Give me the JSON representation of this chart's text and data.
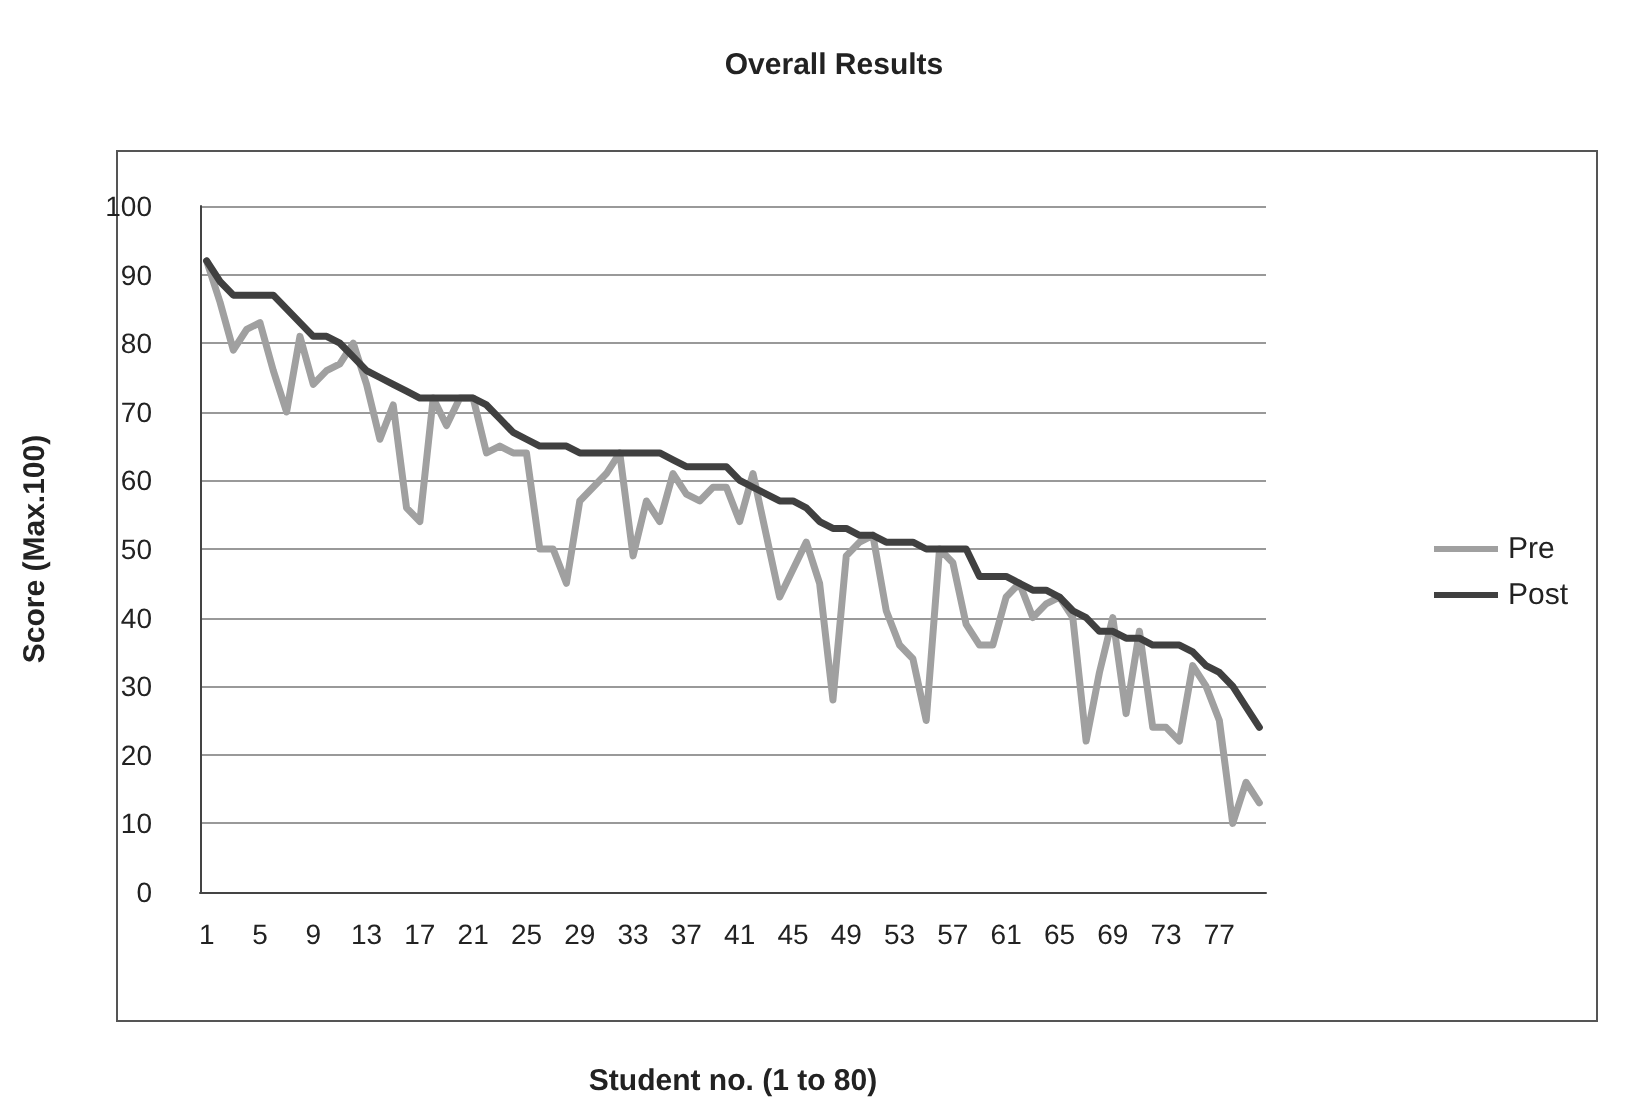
{
  "chart_data": {
    "type": "line",
    "title": "Overall Results",
    "xlabel": "Student no. (1 to 80)",
    "ylabel": "Score (Max.100)",
    "categories": [
      "1",
      null,
      null,
      null,
      "5",
      null,
      null,
      null,
      "9",
      null,
      null,
      null,
      "13",
      null,
      null,
      null,
      "17",
      null,
      null,
      null,
      "21",
      null,
      null,
      null,
      "25",
      null,
      null,
      null,
      "29",
      null,
      null,
      null,
      "33",
      null,
      null,
      null,
      "37",
      null,
      null,
      null,
      "41",
      null,
      null,
      null,
      "45",
      null,
      null,
      null,
      "49",
      null,
      null,
      null,
      "53",
      null,
      null,
      null,
      "57",
      null,
      null,
      null,
      "61",
      null,
      null,
      null,
      "65",
      null,
      null,
      null,
      "69",
      null,
      null,
      null,
      "73",
      null,
      null,
      null,
      "77",
      null,
      null,
      null
    ],
    "series": [
      {
        "name": "Pre",
        "color": "#a0a0a0",
        "values": [
          92,
          86,
          79,
          82,
          83,
          76,
          70,
          81,
          74,
          76,
          77,
          80,
          74,
          66,
          71,
          56,
          54,
          72,
          68,
          72,
          72,
          64,
          65,
          64,
          64,
          50,
          50,
          45,
          57,
          59,
          61,
          64,
          49,
          57,
          54,
          61,
          58,
          57,
          59,
          59,
          54,
          61,
          52,
          43,
          47,
          51,
          45,
          28,
          49,
          51,
          52,
          41,
          36,
          34,
          25,
          50,
          48,
          39,
          36,
          36,
          43,
          45,
          40,
          42,
          43,
          40,
          22,
          32,
          40,
          26,
          38,
          24,
          24,
          22,
          33,
          30,
          25,
          10,
          16,
          13
        ]
      },
      {
        "name": "Post",
        "color": "#404040",
        "values": [
          92,
          89,
          87,
          87,
          87,
          87,
          85,
          83,
          81,
          81,
          80,
          78,
          76,
          75,
          74,
          73,
          72,
          72,
          72,
          72,
          72,
          71,
          69,
          67,
          66,
          65,
          65,
          65,
          64,
          64,
          64,
          64,
          64,
          64,
          64,
          63,
          62,
          62,
          62,
          62,
          60,
          59,
          58,
          57,
          57,
          56,
          54,
          53,
          53,
          52,
          52,
          51,
          51,
          51,
          50,
          50,
          50,
          50,
          46,
          46,
          46,
          45,
          44,
          44,
          43,
          41,
          40,
          38,
          38,
          37,
          37,
          36,
          36,
          36,
          35,
          33,
          32,
          30,
          27,
          24
        ]
      }
    ],
    "ylim": [
      0,
      100
    ],
    "yticks": [
      0,
      10,
      20,
      30,
      40,
      50,
      60,
      70,
      80,
      90,
      100
    ],
    "grid": "y",
    "legend": "right",
    "marker": "none",
    "line_style": "solid"
  }
}
